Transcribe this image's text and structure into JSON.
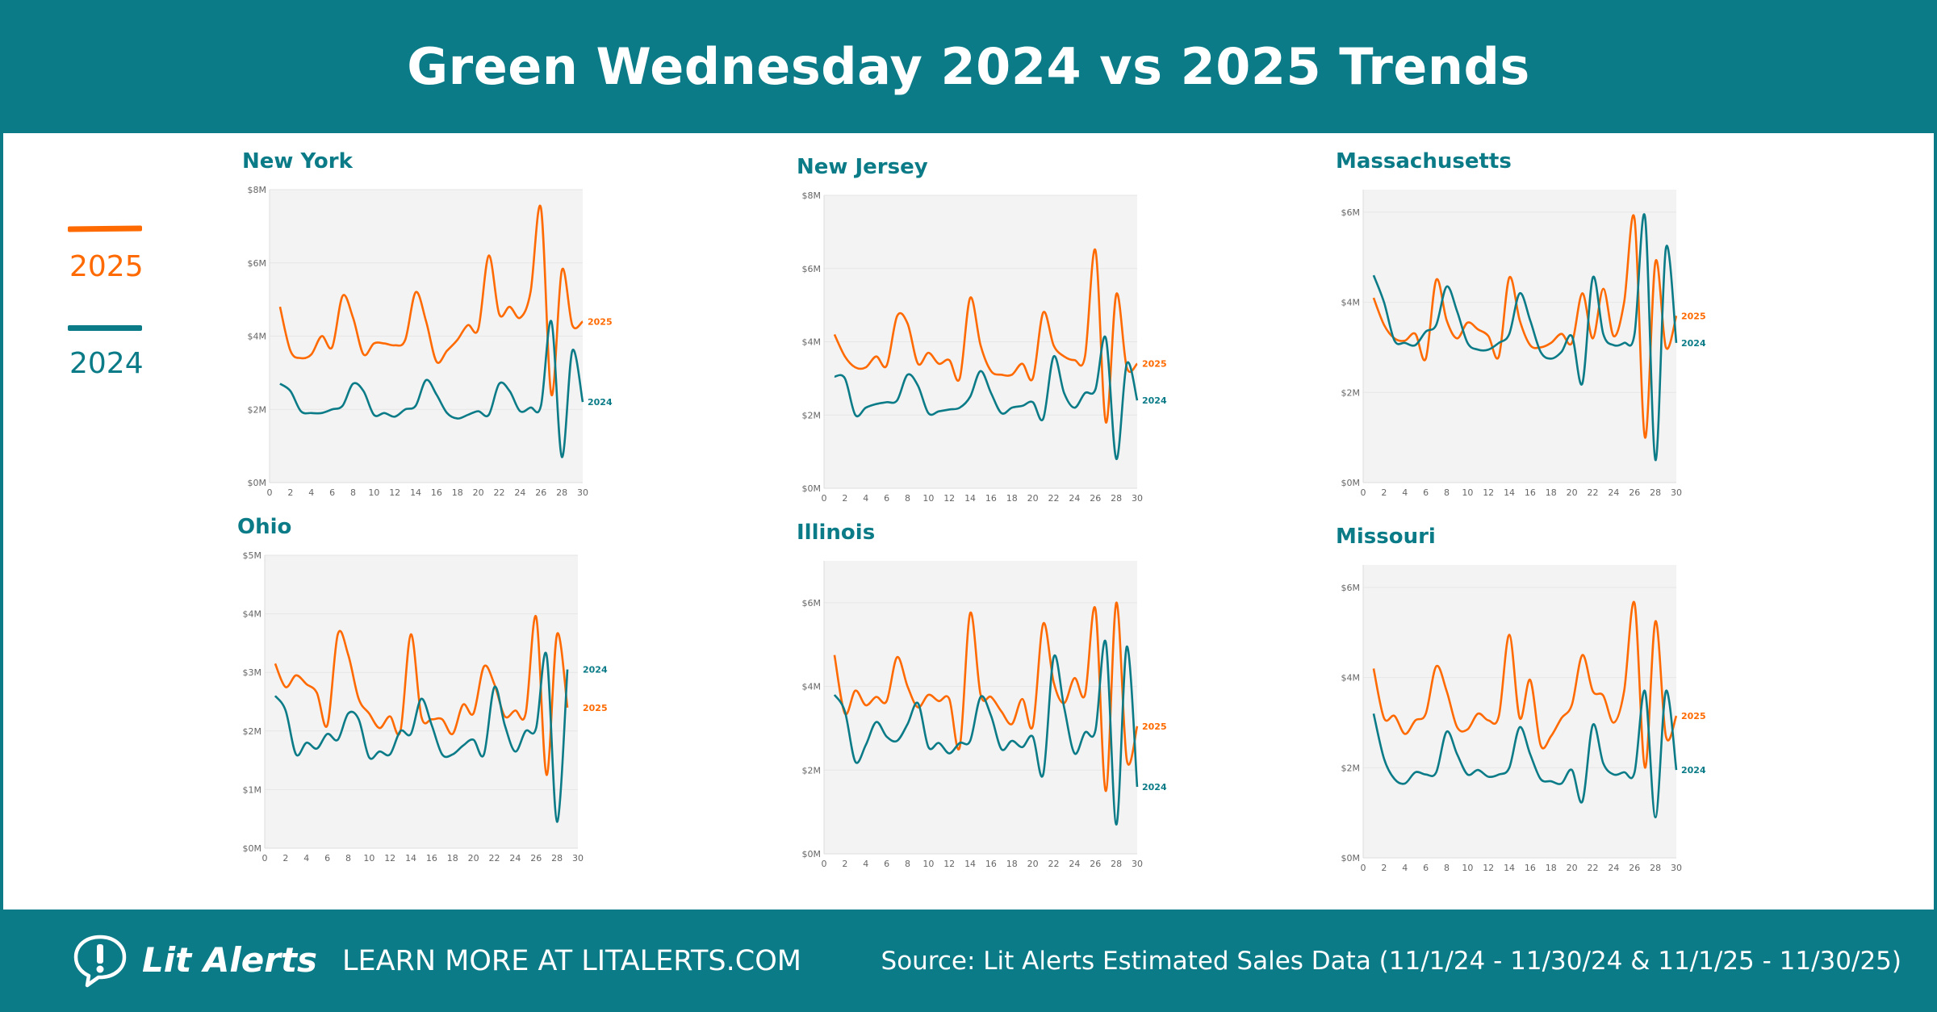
{
  "title": "Green Wednesday 2024 vs 2025 Trends",
  "legend": [
    {
      "label": "2025",
      "color": "#ff6a00"
    },
    {
      "label": "2024",
      "color": "#0a7b87"
    }
  ],
  "colors": {
    "brand": "#0a7b87",
    "y2025": "#ff6a00",
    "y2024": "#0a7b87",
    "plot_bg": "#f3f3f3"
  },
  "footer": {
    "brand": "Lit Alerts",
    "logo_icon": "speech-bubble-exclamation-icon",
    "learn_more": "LEARN MORE AT LITALERTS.COM",
    "source": "Source: Lit Alerts Estimated Sales Data (11/1/24 - 11/30/24 & 11/1/25 - 11/30/25)"
  },
  "chart_data": [
    {
      "type": "line",
      "title": "New York",
      "xlim": [
        0,
        30
      ],
      "xticks": [
        0,
        2,
        4,
        6,
        8,
        10,
        12,
        14,
        16,
        18,
        20,
        22,
        24,
        26,
        28,
        30
      ],
      "ylim": [
        0,
        8
      ],
      "yticks": [
        0,
        2,
        4,
        6,
        8
      ],
      "ytick_labels": [
        "$0M",
        "$2M",
        "$4M",
        "$6M",
        "$8M"
      ],
      "grid": true,
      "series": [
        {
          "name": "2025",
          "values": [
            4.8,
            3.6,
            3.4,
            3.5,
            4.0,
            3.7,
            5.1,
            4.5,
            3.5,
            3.8,
            3.8,
            3.75,
            3.9,
            5.2,
            4.4,
            3.3,
            3.6,
            3.9,
            4.3,
            4.2,
            6.2,
            4.6,
            4.8,
            4.5,
            5.2,
            7.5,
            2.4,
            5.8,
            4.3,
            4.4
          ]
        },
        {
          "name": "2024",
          "values": [
            2.7,
            2.5,
            1.95,
            1.9,
            1.9,
            2.0,
            2.1,
            2.7,
            2.5,
            1.85,
            1.9,
            1.8,
            2.0,
            2.1,
            2.8,
            2.4,
            1.9,
            1.75,
            1.85,
            1.95,
            1.85,
            2.7,
            2.5,
            1.95,
            2.05,
            2.1,
            4.4,
            0.7,
            3.6,
            2.2
          ]
        }
      ]
    },
    {
      "type": "line",
      "title": "New Jersey",
      "xlim": [
        0,
        30
      ],
      "xticks": [
        0,
        2,
        4,
        6,
        8,
        10,
        12,
        14,
        16,
        18,
        20,
        22,
        24,
        26,
        28,
        30
      ],
      "ylim": [
        0,
        8
      ],
      "yticks": [
        0,
        2,
        4,
        6,
        8
      ],
      "ytick_labels": [
        "$0M",
        "$2M",
        "$4M",
        "$6M",
        "$8M"
      ],
      "grid": true,
      "series": [
        {
          "name": "2025",
          "values": [
            4.2,
            3.6,
            3.3,
            3.3,
            3.6,
            3.35,
            4.7,
            4.5,
            3.4,
            3.7,
            3.4,
            3.5,
            3.0,
            5.2,
            3.9,
            3.2,
            3.1,
            3.1,
            3.4,
            3.0,
            4.8,
            3.9,
            3.6,
            3.5,
            3.6,
            6.5,
            1.8,
            5.3,
            3.3,
            3.4
          ]
        },
        {
          "name": "2024",
          "values": [
            3.05,
            3.0,
            2.0,
            2.2,
            2.3,
            2.35,
            2.4,
            3.1,
            2.8,
            2.05,
            2.1,
            2.15,
            2.2,
            2.5,
            3.2,
            2.6,
            2.05,
            2.2,
            2.25,
            2.35,
            1.9,
            3.6,
            2.6,
            2.2,
            2.6,
            2.7,
            4.1,
            0.8,
            3.4,
            2.4
          ]
        }
      ]
    },
    {
      "type": "line",
      "title": "Massachusetts",
      "xlim": [
        0,
        30
      ],
      "xticks": [
        0,
        2,
        4,
        6,
        8,
        10,
        12,
        14,
        16,
        18,
        20,
        22,
        24,
        26,
        28,
        30
      ],
      "ylim": [
        0,
        6.5
      ],
      "yticks": [
        0,
        2,
        4,
        6
      ],
      "ytick_labels": [
        "$0M",
        "$2M",
        "$4M",
        "$6M"
      ],
      "grid": true,
      "series": [
        {
          "name": "2025",
          "values": [
            4.1,
            3.5,
            3.2,
            3.15,
            3.3,
            2.75,
            4.5,
            3.6,
            3.2,
            3.55,
            3.4,
            3.25,
            2.8,
            4.55,
            3.6,
            3.05,
            3.0,
            3.1,
            3.3,
            3.1,
            4.2,
            3.2,
            4.3,
            3.25,
            4.0,
            5.85,
            1.0,
            4.9,
            3.0,
            3.7
          ]
        },
        {
          "name": "2024",
          "values": [
            4.6,
            4.0,
            3.15,
            3.1,
            3.05,
            3.35,
            3.5,
            4.35,
            3.8,
            3.1,
            2.95,
            2.95,
            3.1,
            3.3,
            4.2,
            3.6,
            2.9,
            2.75,
            2.9,
            3.25,
            2.2,
            4.55,
            3.3,
            3.05,
            3.1,
            3.3,
            5.9,
            0.5,
            5.2,
            3.1
          ]
        }
      ]
    },
    {
      "type": "line",
      "title": "Ohio",
      "xlim": [
        0,
        30
      ],
      "xticks": [
        0,
        2,
        4,
        6,
        8,
        10,
        12,
        14,
        16,
        18,
        20,
        22,
        24,
        26,
        28,
        30
      ],
      "ylim": [
        0,
        5
      ],
      "yticks": [
        0,
        1,
        2,
        3,
        4,
        5
      ],
      "ytick_labels": [
        "$0M",
        "$1M",
        "$2M",
        "$3M",
        "$4M",
        "$5M"
      ],
      "grid": true,
      "series": [
        {
          "name": "2025",
          "values": [
            3.15,
            2.75,
            2.95,
            2.8,
            2.65,
            2.1,
            3.65,
            3.3,
            2.55,
            2.3,
            2.05,
            2.25,
            2.0,
            3.65,
            2.25,
            2.2,
            2.2,
            1.95,
            2.45,
            2.3,
            3.1,
            2.8,
            2.25,
            2.35,
            2.3,
            3.95,
            1.25,
            3.65,
            2.4
          ]
        },
        {
          "name": "2024",
          "values": [
            2.6,
            2.35,
            1.6,
            1.8,
            1.7,
            1.95,
            1.85,
            2.3,
            2.2,
            1.55,
            1.65,
            1.6,
            2.0,
            1.95,
            2.55,
            2.1,
            1.6,
            1.6,
            1.75,
            1.85,
            1.6,
            2.75,
            2.1,
            1.65,
            2.0,
            2.05,
            3.3,
            0.45,
            3.05
          ]
        }
      ]
    },
    {
      "type": "line",
      "title": "Illinois",
      "xlim": [
        0,
        30
      ],
      "xticks": [
        0,
        2,
        4,
        6,
        8,
        10,
        12,
        14,
        16,
        18,
        20,
        22,
        24,
        26,
        28,
        30
      ],
      "ylim": [
        0,
        7
      ],
      "yticks": [
        0,
        2,
        4,
        6
      ],
      "ytick_labels": [
        "$0M",
        "$2M",
        "$4M",
        "$6M"
      ],
      "grid": true,
      "series": [
        {
          "name": "2025",
          "values": [
            4.75,
            3.35,
            3.9,
            3.55,
            3.75,
            3.65,
            4.7,
            4.0,
            3.5,
            3.8,
            3.65,
            3.7,
            2.55,
            5.75,
            3.8,
            3.75,
            3.4,
            3.1,
            3.7,
            3.05,
            5.5,
            4.1,
            3.6,
            4.2,
            3.8,
            5.85,
            1.5,
            6.0,
            2.25,
            3.05
          ]
        },
        {
          "name": "2024",
          "values": [
            3.8,
            3.4,
            2.2,
            2.6,
            3.15,
            2.8,
            2.7,
            3.1,
            3.6,
            2.55,
            2.65,
            2.4,
            2.65,
            2.7,
            3.75,
            3.3,
            2.5,
            2.7,
            2.55,
            2.8,
            1.9,
            4.7,
            3.5,
            2.4,
            2.9,
            2.95,
            5.05,
            0.7,
            4.95,
            1.6
          ]
        }
      ]
    },
    {
      "type": "line",
      "title": "Missouri",
      "xlim": [
        0,
        30
      ],
      "xticks": [
        0,
        2,
        4,
        6,
        8,
        10,
        12,
        14,
        16,
        18,
        20,
        22,
        24,
        26,
        28,
        30
      ],
      "ylim": [
        0,
        6.5
      ],
      "yticks": [
        0,
        2,
        4,
        6
      ],
      "ytick_labels": [
        "$0M",
        "$2M",
        "$4M",
        "$6M"
      ],
      "grid": true,
      "series": [
        {
          "name": "2025",
          "values": [
            4.2,
            3.1,
            3.15,
            2.75,
            3.05,
            3.2,
            4.25,
            3.7,
            2.9,
            2.85,
            3.2,
            3.05,
            3.15,
            4.95,
            3.1,
            3.95,
            2.5,
            2.7,
            3.1,
            3.4,
            4.5,
            3.7,
            3.6,
            3.0,
            3.7,
            5.65,
            2.0,
            5.25,
            2.7,
            3.15
          ]
        },
        {
          "name": "2024",
          "values": [
            3.2,
            2.2,
            1.75,
            1.65,
            1.9,
            1.85,
            1.9,
            2.8,
            2.3,
            1.85,
            1.95,
            1.8,
            1.85,
            2.0,
            2.9,
            2.3,
            1.75,
            1.7,
            1.65,
            1.95,
            1.25,
            2.95,
            2.1,
            1.85,
            1.9,
            1.9,
            3.7,
            0.9,
            3.7,
            1.95
          ]
        }
      ]
    }
  ]
}
